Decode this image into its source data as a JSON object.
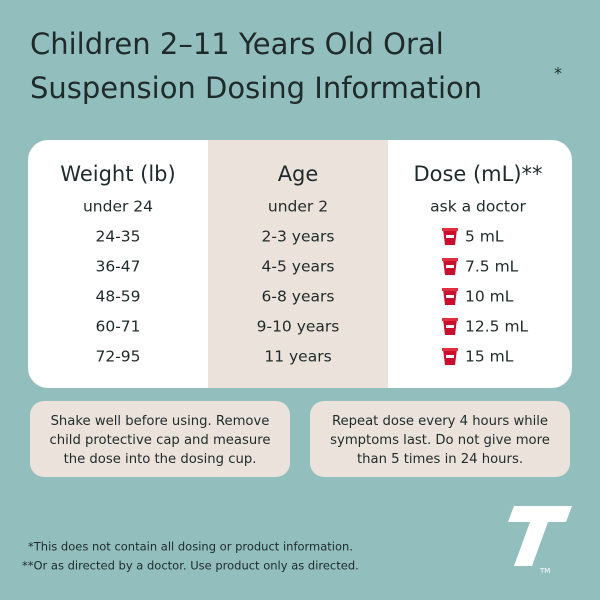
{
  "header": {
    "title_lines": [
      "Children 2–11 Years Old Oral",
      "Suspension Dosing Information"
    ],
    "title_mark": "*"
  },
  "table": {
    "columns": [
      "Weight (lb)",
      "Age",
      "Dose (mL)**"
    ],
    "rows": [
      [
        "under 24",
        "under 2",
        "ask a doctor"
      ],
      [
        "24-35",
        "2-3 years",
        "5 mL"
      ],
      [
        "36-47",
        "4-5 years",
        "7.5 mL"
      ],
      [
        "48-59",
        "6-8 years",
        "10 mL"
      ],
      [
        "60-71",
        "9-10 years",
        "12.5 mL"
      ],
      [
        "72-95",
        "11 years",
        "15 mL"
      ]
    ]
  },
  "notes": [
    [
      "Shake well before using. Remove",
      "child protective cap and measure",
      "the dose into the dosing cup."
    ],
    [
      "Repeat dose every 4 hours while",
      "symptoms last. Do not give more",
      "than 5 times in 24 hours."
    ]
  ],
  "footnotes": [
    "*This does not contain all dosing or product information.",
    "**Or as directed by a doctor. Use product only as directed."
  ],
  "logo": {
    "trademark": "TM"
  }
}
